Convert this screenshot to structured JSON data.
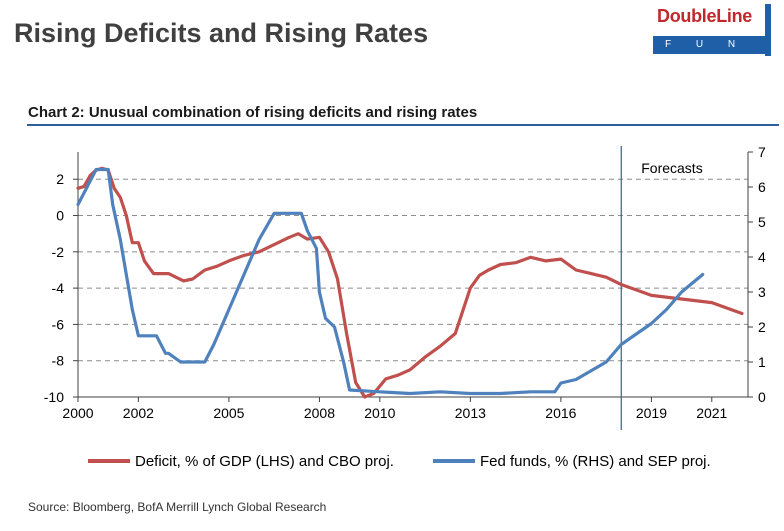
{
  "header": {
    "title": "Rising Deficits and Rising Rates",
    "logo": {
      "brand": "DoubleLine",
      "sub": "F U N D S",
      "brand_color": "#c0282d",
      "band_color": "#1f5fa8"
    }
  },
  "source": "Source:  Bloomberg, BofA Merrill Lynch Global Research",
  "chart_data": {
    "type": "line",
    "title": "Chart 2: Unusual combination of rising deficits and rising rates",
    "annotation": "Forecasts",
    "forecast_start": 2018.0,
    "x_ticks": [
      "2000",
      "2002",
      "2005",
      "2008",
      "2010",
      "2013",
      "2016",
      "2019",
      "2021"
    ],
    "x_tick_values": [
      2000,
      2002,
      2005,
      2008,
      2010,
      2013,
      2016,
      2019,
      2021
    ],
    "xlim": [
      2000,
      2022.2
    ],
    "y_left": {
      "ticks": [
        "2",
        "0",
        "-2",
        "-4",
        "-6",
        "-8",
        "-10"
      ],
      "tick_values": [
        2,
        0,
        -2,
        -4,
        -6,
        -8,
        -10
      ],
      "lim": [
        -10,
        3.5
      ]
    },
    "y_right": {
      "ticks": [
        "7",
        "6",
        "5",
        "4",
        "3",
        "2",
        "1",
        "0"
      ],
      "tick_values": [
        7,
        6,
        5,
        4,
        3,
        2,
        1,
        0
      ],
      "lim": [
        0,
        7
      ]
    },
    "grid": true,
    "legend_position": "bottom",
    "series": [
      {
        "name": "Deficit, % of GDP (LHS) and CBO proj.",
        "axis": "left",
        "color": "#c0504d",
        "x": [
          2000.0,
          2000.2,
          2000.4,
          2000.6,
          2000.8,
          2001.0,
          2001.2,
          2001.4,
          2001.6,
          2001.8,
          2002.0,
          2002.2,
          2002.5,
          2003.0,
          2003.5,
          2003.8,
          2004.2,
          2004.6,
          2005.0,
          2005.5,
          2006.0,
          2006.5,
          2007.0,
          2007.3,
          2007.6,
          2008.0,
          2008.3,
          2008.6,
          2008.9,
          2009.2,
          2009.5,
          2009.8,
          2010.2,
          2010.6,
          2011.0,
          2011.5,
          2012.0,
          2012.5,
          2013.0,
          2013.3,
          2013.6,
          2014.0,
          2014.5,
          2015.0,
          2015.5,
          2016.0,
          2016.5,
          2017.0,
          2017.5,
          2018.0,
          2019.0,
          2020.0,
          2021.0,
          2022.0
        ],
        "values": [
          1.5,
          1.6,
          2.2,
          2.5,
          2.6,
          2.5,
          1.5,
          1.0,
          0.0,
          -1.5,
          -1.5,
          -2.5,
          -3.2,
          -3.2,
          -3.6,
          -3.5,
          -3.0,
          -2.8,
          -2.5,
          -2.2,
          -2.0,
          -1.6,
          -1.2,
          -1.0,
          -1.3,
          -1.2,
          -2.0,
          -3.5,
          -6.5,
          -9.2,
          -10.0,
          -9.8,
          -9.0,
          -8.8,
          -8.5,
          -7.8,
          -7.2,
          -6.5,
          -4.0,
          -3.3,
          -3.0,
          -2.7,
          -2.6,
          -2.3,
          -2.5,
          -2.4,
          -3.0,
          -3.2,
          -3.4,
          -3.8,
          -4.4,
          -4.6,
          -4.8,
          -5.4
        ]
      },
      {
        "name": "Fed funds, % (RHS) and SEP proj.",
        "axis": "right",
        "color": "#4f81bd",
        "x": [
          2000.0,
          2000.3,
          2000.6,
          2001.0,
          2001.15,
          2001.4,
          2001.6,
          2001.8,
          2002.0,
          2002.3,
          2002.6,
          2002.9,
          2003.0,
          2003.4,
          2003.7,
          2004.2,
          2004.5,
          2005.0,
          2005.5,
          2006.0,
          2006.5,
          2007.0,
          2007.4,
          2007.6,
          2007.9,
          2008.0,
          2008.2,
          2008.5,
          2008.8,
          2009.0,
          2010.0,
          2011.0,
          2012.0,
          2013.0,
          2014.0,
          2015.0,
          2015.8,
          2016.0,
          2016.5,
          2017.0,
          2017.5,
          2018.0,
          2018.5,
          2019.0,
          2019.5,
          2020.0,
          2020.7
        ],
        "values": [
          5.5,
          6.0,
          6.5,
          6.5,
          5.5,
          4.5,
          3.5,
          2.5,
          1.75,
          1.75,
          1.75,
          1.25,
          1.25,
          1.0,
          1.0,
          1.0,
          1.5,
          2.5,
          3.5,
          4.5,
          5.25,
          5.25,
          5.25,
          4.75,
          4.25,
          3.0,
          2.25,
          2.0,
          1.0,
          0.2,
          0.15,
          0.1,
          0.15,
          0.1,
          0.1,
          0.15,
          0.15,
          0.4,
          0.5,
          0.75,
          1.0,
          1.5,
          1.8,
          2.1,
          2.5,
          3.0,
          3.5
        ]
      }
    ]
  }
}
